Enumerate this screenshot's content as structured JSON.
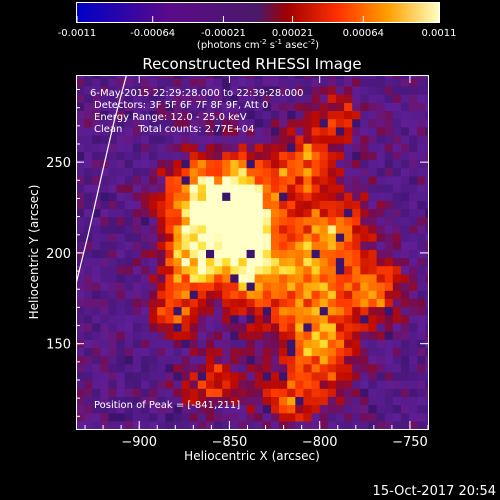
{
  "colorbar": {
    "tick_labels": [
      "-0.0011",
      "-0.00064",
      "-0.00021",
      "0.00021",
      "0.00064",
      "0.0011"
    ],
    "range": [
      -0.0011,
      0.0011
    ],
    "units_base": "(photons cm",
    "units_exp1": "-2",
    "units_mid": " s",
    "units_exp2": "-1",
    "units_mid2": " asec",
    "units_exp3": "-2",
    "units_end": ")"
  },
  "chart_data": {
    "type": "heatmap",
    "title": "Reconstructed RHESSI Image",
    "xlabel": "Heliocentric X (arcsec)",
    "ylabel": "Heliocentric Y (arcsec)",
    "xlim": [
      -935,
      -740
    ],
    "ylim": [
      103,
      298
    ],
    "x_ticks": [
      -900,
      -850,
      -800,
      -750
    ],
    "y_ticks": [
      150,
      200,
      250
    ],
    "x_tick_labels": [
      "−900",
      "−850",
      "−800",
      "−750"
    ],
    "y_tick_labels": [
      "150",
      "200",
      "250"
    ],
    "peak": [
      -841,
      211
    ],
    "limb_arc": {
      "x": [
        -935,
        -928,
        -921,
        -914,
        -907
      ],
      "y": [
        183,
        211,
        242,
        272,
        298
      ]
    },
    "sources": [
      {
        "x": -858,
        "y": 228,
        "sx": 18,
        "sy": 16,
        "amp": 1.0
      },
      {
        "x": -840,
        "y": 208,
        "sx": 10,
        "sy": 22,
        "amp": 0.95
      },
      {
        "x": -868,
        "y": 196,
        "sx": 12,
        "sy": 12,
        "amp": 0.75
      },
      {
        "x": -810,
        "y": 250,
        "sx": 12,
        "sy": 12,
        "amp": 0.55
      },
      {
        "x": -795,
        "y": 215,
        "sx": 16,
        "sy": 14,
        "amp": 0.5
      },
      {
        "x": -810,
        "y": 185,
        "sx": 18,
        "sy": 16,
        "amp": 0.6
      },
      {
        "x": -800,
        "y": 150,
        "sx": 14,
        "sy": 14,
        "amp": 0.65
      },
      {
        "x": -770,
        "y": 180,
        "sx": 12,
        "sy": 12,
        "amp": 0.45
      },
      {
        "x": -815,
        "y": 120,
        "sx": 14,
        "sy": 10,
        "amp": 0.4
      },
      {
        "x": -880,
        "y": 170,
        "sx": 10,
        "sy": 10,
        "amp": 0.45
      },
      {
        "x": -860,
        "y": 130,
        "sx": 12,
        "sy": 10,
        "amp": 0.35
      },
      {
        "x": -790,
        "y": 275,
        "sx": 10,
        "sy": 10,
        "amp": 0.35
      }
    ]
  },
  "info": {
    "line1": "6-May-2015 22:29:28.000 to 22:39:28.000",
    "line2": "Detectors: 3F 5F 6F 7F 8F 9F, Att 0",
    "line3": "Energy Range: 12.0 - 25.0 keV",
    "line4": "Clean     Total counts: 2.77E+04",
    "peak_label": "Position of Peak = [-841,211]"
  },
  "footer": {
    "timestamp": "15-Oct-2017 20:54"
  }
}
